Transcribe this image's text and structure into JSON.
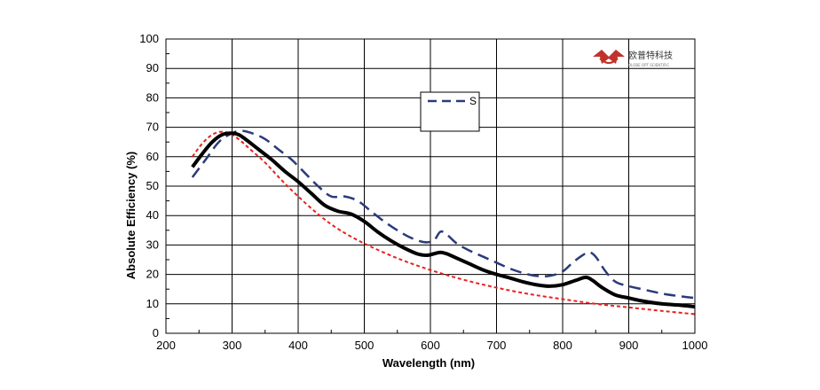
{
  "chart_data": {
    "type": "line",
    "xlabel": "Wavelength (nm)",
    "ylabel": "Absolute Efficiency (%)",
    "xlim": [
      200,
      1000
    ],
    "ylim": [
      0,
      100
    ],
    "x_ticks": [
      200,
      300,
      400,
      500,
      600,
      700,
      800,
      900,
      1000
    ],
    "y_ticks": [
      0,
      10,
      20,
      30,
      40,
      50,
      60,
      70,
      80,
      90,
      100
    ],
    "grid": true,
    "legend": {
      "placement": "upper-center",
      "entries": [
        {
          "label": "S",
          "series_index": 1
        }
      ]
    },
    "series": [
      {
        "style": "solid",
        "color": "#000000",
        "x": [
          240,
          255,
          270,
          285,
          300,
          310,
          320,
          340,
          360,
          380,
          400,
          420,
          440,
          460,
          480,
          500,
          520,
          540,
          560,
          580,
          595,
          605,
          615,
          625,
          640,
          660,
          680,
          700,
          720,
          740,
          760,
          780,
          800,
          820,
          835,
          845,
          860,
          880,
          900,
          920,
          950,
          980,
          1000
        ],
        "y": [
          56.5,
          61,
          65,
          67.5,
          68,
          67.5,
          66,
          62.5,
          59,
          55,
          51.5,
          47.5,
          43.5,
          41.5,
          40.5,
          38,
          34.5,
          31.5,
          29,
          27,
          26.5,
          27,
          27.5,
          27,
          25.5,
          23.5,
          21.5,
          20,
          18.8,
          17.5,
          16.5,
          16,
          16.5,
          18,
          19,
          18,
          15.5,
          13,
          12,
          11,
          10,
          9.5,
          9
        ]
      },
      {
        "style": "dashed",
        "color": "#2b3a7a",
        "x": [
          240,
          260,
          280,
          300,
          315,
          330,
          350,
          370,
          390,
          410,
          430,
          450,
          470,
          490,
          510,
          530,
          550,
          570,
          590,
          605,
          615,
          625,
          640,
          660,
          680,
          700,
          720,
          740,
          760,
          780,
          800,
          815,
          830,
          840,
          850,
          865,
          880,
          900,
          920,
          950,
          980,
          1000
        ],
        "y": [
          53,
          59,
          65,
          68,
          68.8,
          68,
          66,
          62.5,
          59,
          54.5,
          50,
          46.5,
          46.5,
          45,
          41.5,
          38,
          35,
          32.5,
          31,
          31.5,
          34.5,
          33.5,
          30.5,
          28,
          26,
          24,
          22,
          20.5,
          19.5,
          19.5,
          21,
          24,
          26.5,
          27.5,
          26,
          21,
          17.5,
          16,
          15,
          13.5,
          12.5,
          12
        ]
      },
      {
        "style": "dotted",
        "color": "#e8211c",
        "x": [
          240,
          255,
          270,
          285,
          300,
          315,
          330,
          350,
          375,
          400,
          430,
          460,
          500,
          550,
          600,
          650,
          700,
          750,
          800,
          850,
          900,
          950,
          1000
        ],
        "y": [
          60,
          64.5,
          67.5,
          68.5,
          67.5,
          65,
          62,
          58,
          52,
          46.5,
          40.5,
          35.5,
          30.5,
          25.5,
          21.5,
          18.2,
          15.5,
          13.3,
          11.6,
          10,
          8.8,
          7.6,
          6.5
        ]
      }
    ]
  },
  "logo": {
    "name": "company-logo",
    "text_cn": "欧普特科技",
    "text_en": "OLOBE OPT SCIENTIFIC"
  }
}
